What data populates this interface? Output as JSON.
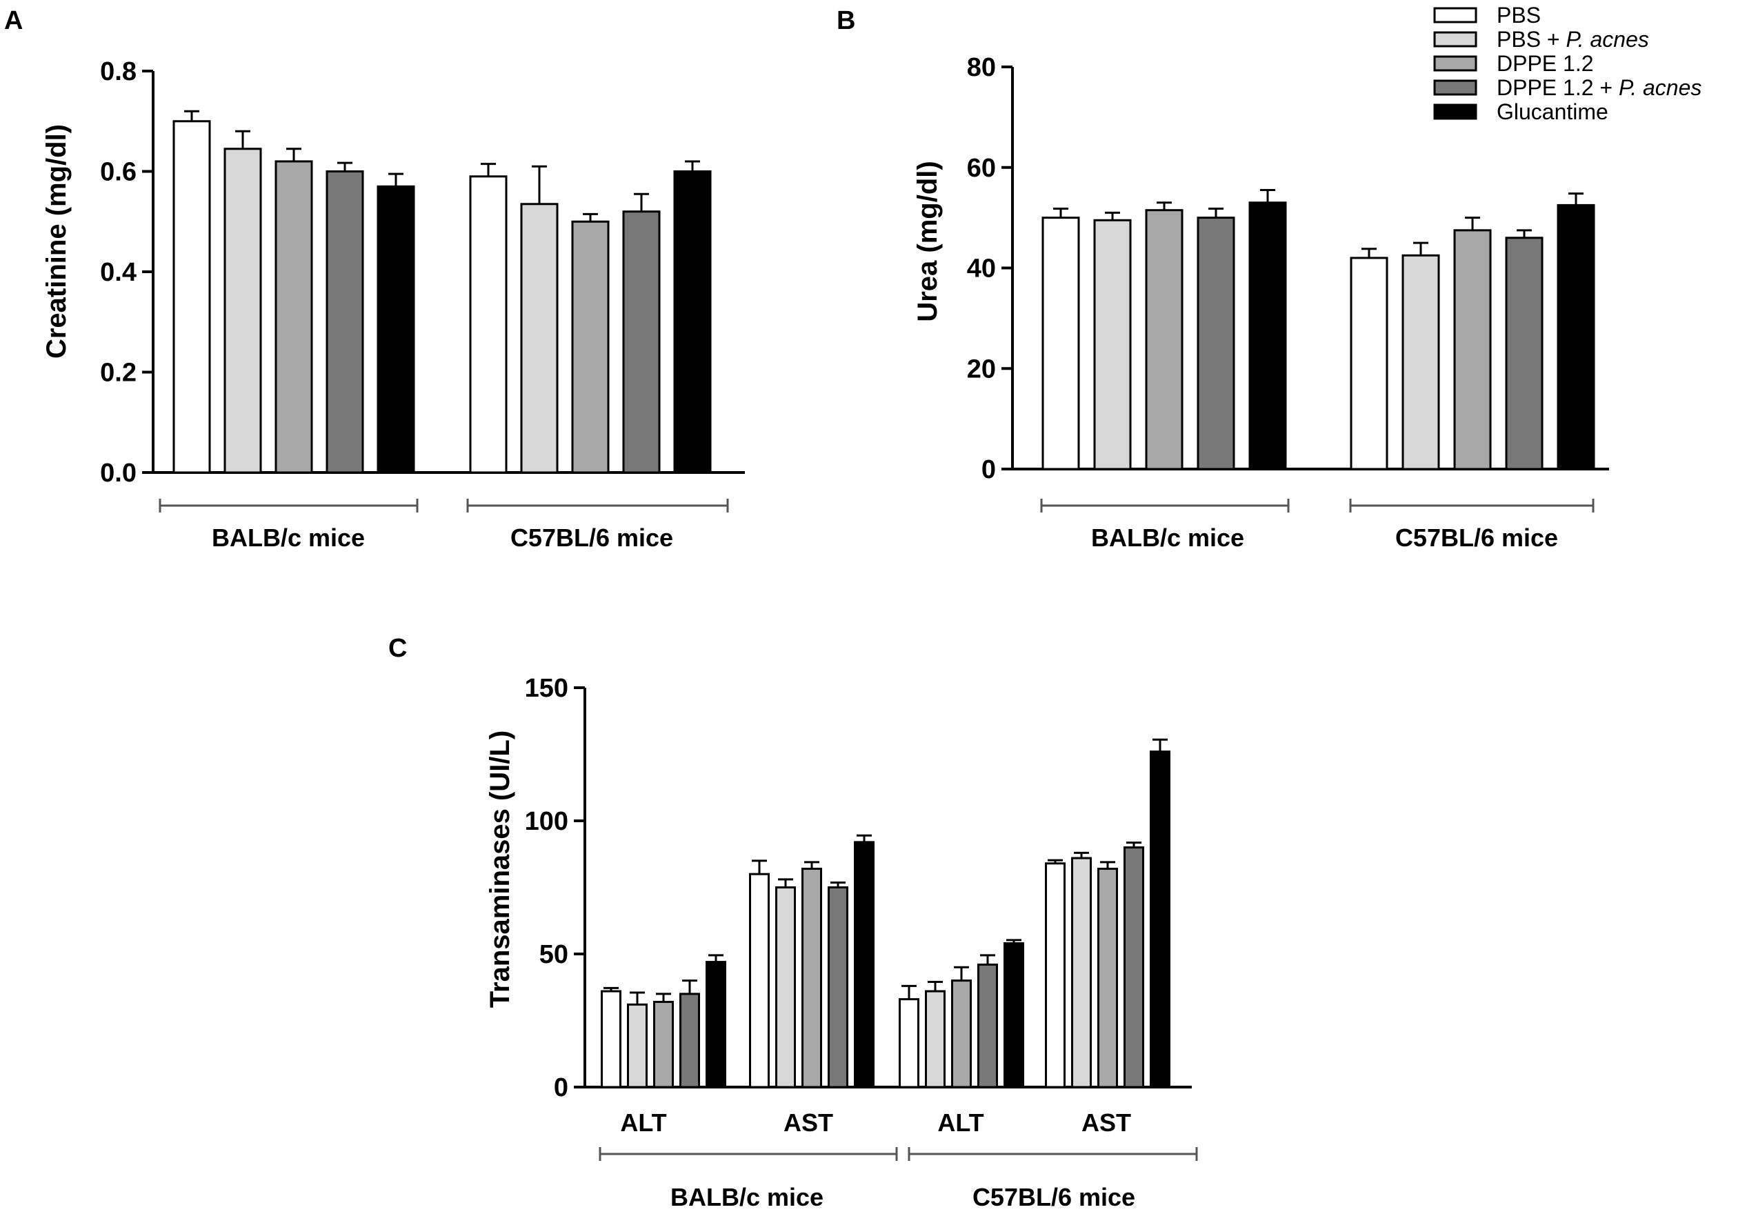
{
  "colors": {
    "series": [
      "#ffffff",
      "#d8d8d8",
      "#a8a8a8",
      "#787878",
      "#000000"
    ],
    "stroke": "#000000",
    "bracket": "#555555"
  },
  "legend": {
    "entries": [
      {
        "pre": "PBS",
        "italic": ""
      },
      {
        "pre": "PBS + ",
        "italic": "P. acnes"
      },
      {
        "pre": "DPPE 1.2",
        "italic": ""
      },
      {
        "pre": "DPPE 1.2 + ",
        "italic": "P. acnes"
      },
      {
        "pre": "Glucantime",
        "italic": ""
      }
    ]
  },
  "chart_data": [
    {
      "panel": "A",
      "type": "bar",
      "ylabel": "Creatinine (mg/dl)",
      "ylim": [
        0,
        0.8
      ],
      "yticks": [
        "0.0",
        "0.2",
        "0.4",
        "0.6",
        "0.8"
      ],
      "yticks_values": [
        0,
        0.2,
        0.4,
        0.6,
        0.8
      ],
      "series_names": [
        "PBS",
        "PBS + P. acnes",
        "DPPE 1.2",
        "DPPE 1.2 + P. acnes",
        "Glucantime"
      ],
      "groups": [
        {
          "label": "BALB/c mice",
          "values": [
            0.7,
            0.645,
            0.62,
            0.6,
            0.57
          ],
          "errors": [
            0.02,
            0.035,
            0.025,
            0.017,
            0.025
          ]
        },
        {
          "label": "C57BL/6 mice",
          "values": [
            0.59,
            0.535,
            0.5,
            0.52,
            0.6
          ],
          "errors": [
            0.025,
            0.075,
            0.015,
            0.035,
            0.02
          ]
        }
      ]
    },
    {
      "panel": "B",
      "type": "bar",
      "ylabel": "Urea (mg/dl)",
      "ylim": [
        0,
        80
      ],
      "yticks": [
        "0",
        "20",
        "40",
        "60",
        "80"
      ],
      "yticks_values": [
        0,
        20,
        40,
        60,
        80
      ],
      "series_names": [
        "PBS",
        "PBS + P. acnes",
        "DPPE 1.2",
        "DPPE 1.2 + P. acnes",
        "Glucantime"
      ],
      "groups": [
        {
          "label": "BALB/c mice",
          "values": [
            50,
            49.5,
            51.5,
            50,
            53
          ],
          "errors": [
            1.8,
            1.5,
            1.5,
            1.8,
            2.5
          ]
        },
        {
          "label": "C57BL/6 mice",
          "values": [
            42,
            42.5,
            47.5,
            46,
            52.5
          ],
          "errors": [
            1.8,
            2.5,
            2.5,
            1.5,
            2.3
          ]
        }
      ]
    },
    {
      "panel": "C",
      "type": "bar",
      "ylabel": "Transaminases (UI/L)",
      "ylim": [
        0,
        150
      ],
      "yticks": [
        "0",
        "50",
        "100",
        "150"
      ],
      "yticks_values": [
        0,
        50,
        100,
        150
      ],
      "series_names": [
        "PBS",
        "PBS + P. acnes",
        "DPPE 1.2",
        "DPPE 1.2 + P. acnes",
        "Glucantime"
      ],
      "subgroups": [
        {
          "label": "ALT",
          "group": "BALB/c mice",
          "values": [
            36,
            31,
            32,
            35,
            47
          ],
          "errors": [
            1.2,
            4.5,
            3,
            5,
            2.5
          ]
        },
        {
          "label": "AST",
          "group": "BALB/c mice",
          "values": [
            80,
            75,
            82,
            75,
            92
          ],
          "errors": [
            5,
            3,
            2.5,
            1.8,
            2.5
          ]
        },
        {
          "label": "ALT",
          "group": "C57BL/6 mice",
          "values": [
            33,
            36,
            40,
            46,
            54
          ],
          "errors": [
            5,
            3.5,
            5,
            3.5,
            1.2
          ]
        },
        {
          "label": "AST",
          "group": "C57BL/6 mice",
          "values": [
            84,
            86,
            82,
            90,
            126
          ],
          "errors": [
            1.2,
            2,
            2.5,
            1.8,
            4.5
          ]
        }
      ],
      "groups": [
        {
          "label": "BALB/c mice"
        },
        {
          "label": "C57BL/6 mice"
        }
      ]
    }
  ]
}
